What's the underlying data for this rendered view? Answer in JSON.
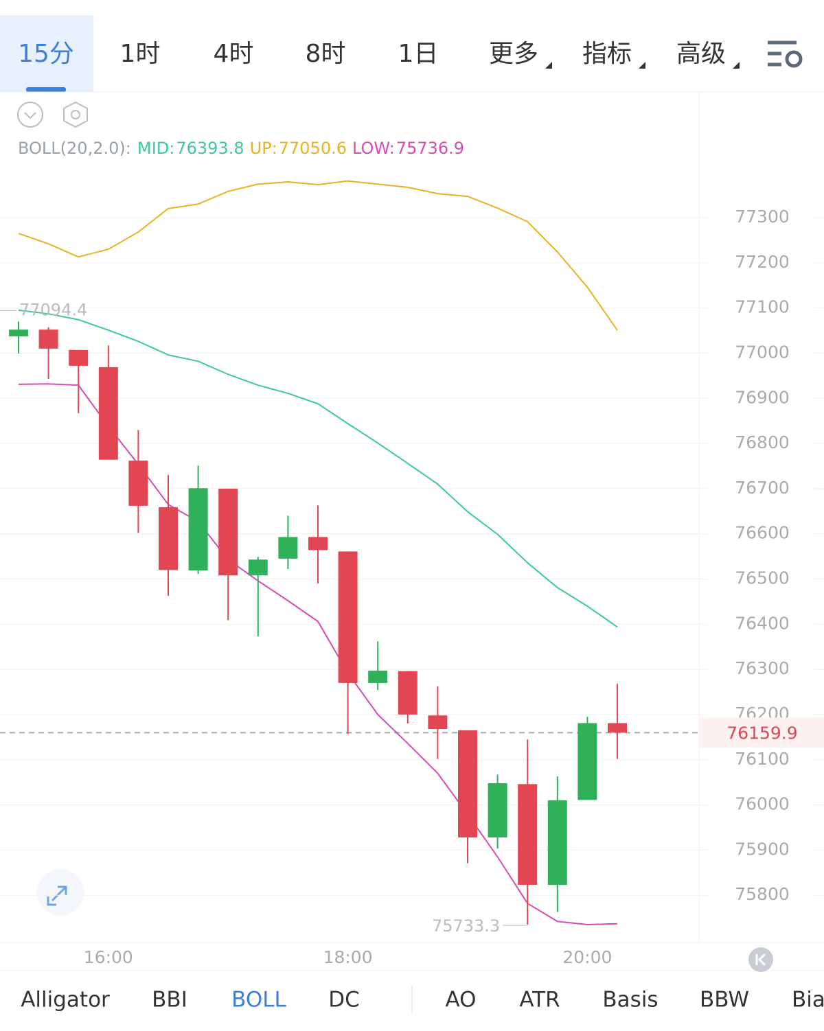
{
  "tabs": [
    "15分",
    "1时",
    "4时",
    "8时",
    "1日",
    "更多",
    "指标",
    "高级"
  ],
  "active_tab": 0,
  "indicators": [
    "Alligator",
    "BBI",
    "BOLL",
    "DC",
    "AO",
    "ATR",
    "Basis",
    "BBW",
    "Bias"
  ],
  "active_indicator": 2,
  "chart_data": {
    "type": "candlestick",
    "indicator": "BOLL(20,2.0):",
    "categories": [
      null,
      null,
      null,
      "16:00",
      null,
      null,
      null,
      null,
      null,
      null,
      null,
      "18:00",
      null,
      null,
      null,
      null,
      null,
      null,
      null,
      "20:00",
      null
    ],
    "open": [
      77037,
      77052,
      77007,
      76969,
      76762,
      76659,
      76519,
      76700,
      76508,
      76545,
      76593,
      76561,
      76270,
      76296,
      76198,
      76165,
      75928,
      76046,
      75823,
      76011,
      76181
    ],
    "high": [
      77070,
      77057,
      77007,
      77017,
      76830,
      76730,
      76751,
      76700,
      76549,
      76640,
      76663,
      76561,
      76362,
      76296,
      76262,
      76165,
      76067,
      76145,
      76063,
      76195,
      76268
    ],
    "low": [
      76999,
      76943,
      76867,
      76764,
      76602,
      76463,
      76511,
      76409,
      76373,
      76522,
      76490,
      76157,
      76254,
      76180,
      76102,
      75871,
      75903,
      75735,
      75763,
      76011,
      76102
    ],
    "close": [
      77052,
      77010,
      76972,
      76764,
      76662,
      76520,
      76701,
      76508,
      76543,
      76593,
      76564,
      76270,
      76297,
      76200,
      76168,
      75928,
      76048,
      75823,
      76010,
      76181,
      76159.9
    ],
    "up_color": "#2fb15a",
    "down_color": "#e34653",
    "overlays": [
      {
        "name": "MID:",
        "color": "#3cc8a0",
        "values": [
          77095,
          77087,
          77074,
          77051,
          77026,
          76996,
          76982,
          76953,
          76929,
          76911,
          76888,
          76844,
          76801,
          76756,
          76710,
          76649,
          76599,
          76536,
          76481,
          76440,
          76393.8
        ]
      },
      {
        "name": "UP:",
        "color": "#e6b422",
        "values": [
          77265,
          77242,
          77213,
          77230,
          77268,
          77320,
          77330,
          77358,
          77374,
          77379,
          77373,
          77381,
          77374,
          77367,
          77353,
          77347,
          77321,
          77291,
          77224,
          77146,
          77050.6
        ]
      },
      {
        "name": "LOW:",
        "color": "#d64bb4",
        "values": [
          76931,
          76932,
          76929,
          76838,
          76754,
          76665,
          76627,
          76543,
          76496,
          76452,
          76406,
          76292,
          76200,
          76136,
          76070,
          75979,
          75885,
          75782,
          75742,
          75735,
          75736.9
        ]
      }
    ],
    "ylim": [
      75697,
      77417
    ],
    "yticks": [
      75800,
      75900,
      76000,
      76100,
      76200,
      76300,
      76400,
      76500,
      76600,
      76700,
      76800,
      76900,
      77000,
      77100,
      77200,
      77300
    ],
    "high_marker": 77094.4,
    "low_marker": 75733.3,
    "last_price": 76159.9
  }
}
